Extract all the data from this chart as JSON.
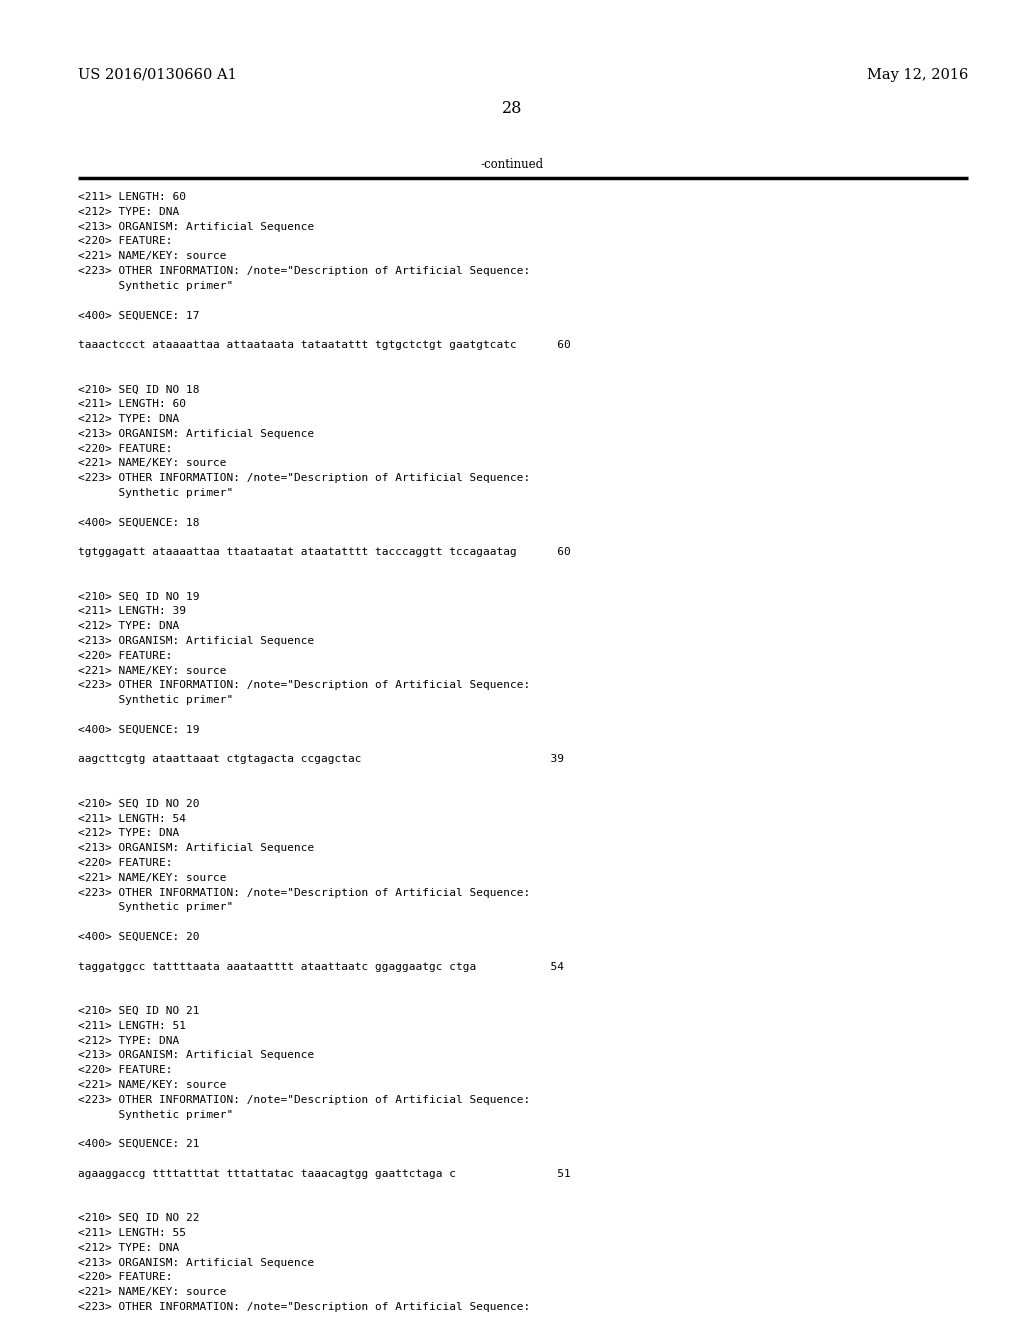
{
  "header_left": "US 2016/0130660 A1",
  "header_right": "May 12, 2016",
  "page_number": "28",
  "continued_text": "-continued",
  "background_color": "#ffffff",
  "text_color": "#000000",
  "font_size": 8.0,
  "header_font_size": 10.5,
  "page_num_font_size": 11.5,
  "lines": [
    "<211> LENGTH: 60",
    "<212> TYPE: DNA",
    "<213> ORGANISM: Artificial Sequence",
    "<220> FEATURE:",
    "<221> NAME/KEY: source",
    "<223> OTHER INFORMATION: /note=\"Description of Artificial Sequence:",
    "      Synthetic primer\"",
    "",
    "<400> SEQUENCE: 17",
    "",
    "taaactccct ataaaattaa attaataata tataatattt tgtgctctgt gaatgtcatc      60",
    "",
    "",
    "<210> SEQ ID NO 18",
    "<211> LENGTH: 60",
    "<212> TYPE: DNA",
    "<213> ORGANISM: Artificial Sequence",
    "<220> FEATURE:",
    "<221> NAME/KEY: source",
    "<223> OTHER INFORMATION: /note=\"Description of Artificial Sequence:",
    "      Synthetic primer\"",
    "",
    "<400> SEQUENCE: 18",
    "",
    "tgtggagatt ataaaattaa ttaataatat ataatatttt tacccaggtt tccagaatag      60",
    "",
    "",
    "<210> SEQ ID NO 19",
    "<211> LENGTH: 39",
    "<212> TYPE: DNA",
    "<213> ORGANISM: Artificial Sequence",
    "<220> FEATURE:",
    "<221> NAME/KEY: source",
    "<223> OTHER INFORMATION: /note=\"Description of Artificial Sequence:",
    "      Synthetic primer\"",
    "",
    "<400> SEQUENCE: 19",
    "",
    "aagcttcgtg ataattaaat ctgtagacta ccgagctac                            39",
    "",
    "",
    "<210> SEQ ID NO 20",
    "<211> LENGTH: 54",
    "<212> TYPE: DNA",
    "<213> ORGANISM: Artificial Sequence",
    "<220> FEATURE:",
    "<221> NAME/KEY: source",
    "<223> OTHER INFORMATION: /note=\"Description of Artificial Sequence:",
    "      Synthetic primer\"",
    "",
    "<400> SEQUENCE: 20",
    "",
    "taggatggcc tattttaata aaataatttt ataattaatc ggaggaatgc ctga           54",
    "",
    "",
    "<210> SEQ ID NO 21",
    "<211> LENGTH: 51",
    "<212> TYPE: DNA",
    "<213> ORGANISM: Artificial Sequence",
    "<220> FEATURE:",
    "<221> NAME/KEY: source",
    "<223> OTHER INFORMATION: /note=\"Description of Artificial Sequence:",
    "      Synthetic primer\"",
    "",
    "<400> SEQUENCE: 21",
    "",
    "agaaggaccg ttttatttat tttattatac taaacagtgg gaattctaga c               51",
    "",
    "",
    "<210> SEQ ID NO 22",
    "<211> LENGTH: 55",
    "<212> TYPE: DNA",
    "<213> ORGANISM: Artificial Sequence",
    "<220> FEATURE:",
    "<221> NAME/KEY: source",
    "<223> OTHER INFORMATION: /note=\"Description of Artificial Sequence:"
  ]
}
